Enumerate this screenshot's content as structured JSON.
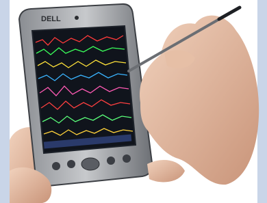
{
  "device": {
    "brand": "DELL"
  }
}
